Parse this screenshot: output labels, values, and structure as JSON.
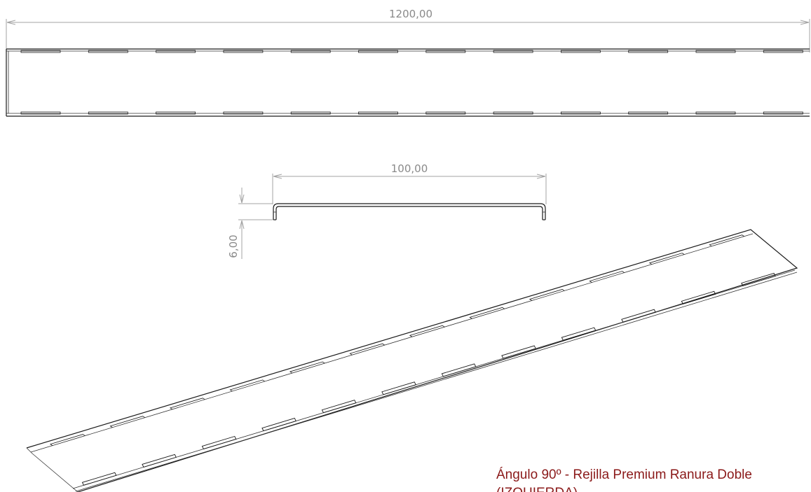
{
  "dimensions": {
    "length": "1200,00",
    "width": "100,00",
    "height": "6,00"
  },
  "caption": {
    "line1": "Ángulo 90º -  Rejilla Premium Ranura Doble",
    "line2": "(IZQUIERDA)"
  },
  "colors": {
    "caption": "#8b1a1a",
    "dimension": "#8a8a8a",
    "outline": "#1a1a1a"
  }
}
